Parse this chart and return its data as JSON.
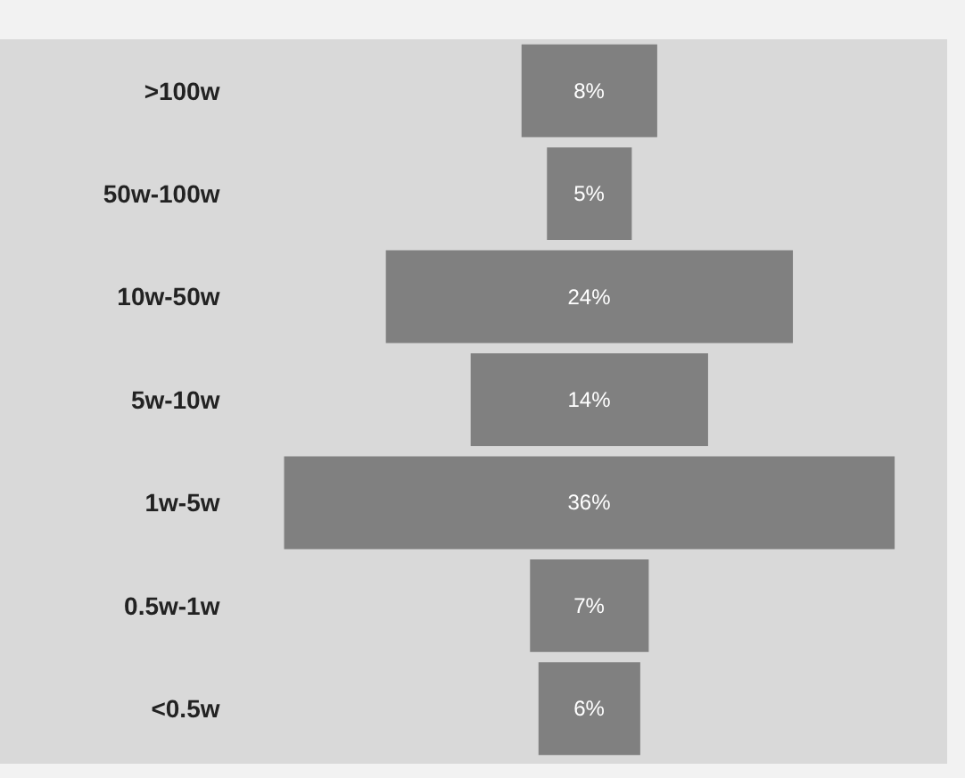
{
  "chart_data": {
    "type": "other",
    "categories": [
      ">100w",
      "50w-100w",
      "10w-50w",
      "5w-10w",
      "1w-5w",
      "0.5w-1w",
      "<0.5w"
    ],
    "values": [
      8,
      5,
      24,
      14,
      36,
      7,
      6
    ],
    "value_labels": [
      "8%",
      "5%",
      "24%",
      "14%",
      "36%",
      "7%",
      "6%"
    ],
    "color": "#808080"
  }
}
